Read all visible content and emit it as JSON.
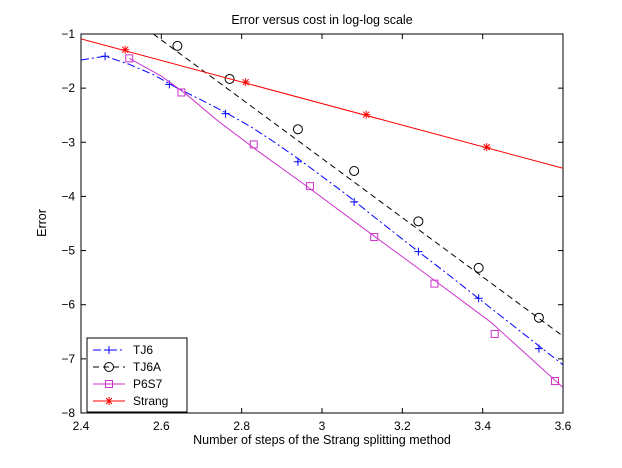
{
  "chart_data": {
    "type": "line",
    "title": "Error versus cost in log-log scale",
    "xlabel": "Number of steps of the Strang splitting method",
    "ylabel": "Error",
    "xlim": [
      2.4,
      3.6
    ],
    "ylim": [
      -8,
      -1
    ],
    "xticks": [
      2.4,
      2.6,
      2.8,
      3.0,
      3.2,
      3.4,
      3.6
    ],
    "xtick_labels": [
      "2.4",
      "2.6",
      "2.8",
      "3",
      "3.2",
      "3.4",
      "3.6"
    ],
    "yticks": [
      -8,
      -7,
      -6,
      -5,
      -4,
      -3,
      -2,
      -1
    ],
    "ytick_labels": [
      "−8",
      "−7",
      "−6",
      "−5",
      "−4",
      "−3",
      "−2",
      "−1"
    ],
    "grid": false,
    "legend_position": "bottom-left",
    "series": [
      {
        "name": "TJ6",
        "color": "#0000ff",
        "line_style": "dash-dot",
        "marker": "plus",
        "line_x": [
          2.4,
          2.46,
          2.52,
          2.58,
          2.64,
          2.7,
          2.76,
          2.82,
          2.88,
          2.94,
          3.0,
          3.06,
          3.12,
          3.18,
          3.24,
          3.3,
          3.36,
          3.42,
          3.48,
          3.54,
          3.6
        ],
        "line_y": [
          -1.48,
          -1.41,
          -1.56,
          -1.75,
          -2.0,
          -2.22,
          -2.45,
          -2.7,
          -2.99,
          -3.3,
          -3.63,
          -3.96,
          -4.32,
          -4.67,
          -5.02,
          -5.36,
          -5.71,
          -6.06,
          -6.41,
          -6.76,
          -7.11
        ],
        "marker_x": [
          2.46,
          2.62,
          2.76,
          2.94,
          3.08,
          3.24,
          3.39,
          3.54
        ],
        "marker_y": [
          -1.41,
          -1.93,
          -2.47,
          -3.36,
          -4.1,
          -5.02,
          -5.88,
          -6.81
        ]
      },
      {
        "name": "TJ6A",
        "color": "#000000",
        "line_style": "dashed",
        "marker": "circle",
        "line_x": [
          2.58,
          3.6
        ],
        "line_y": [
          -1.0,
          -6.58
        ],
        "marker_x": [
          2.64,
          2.77,
          2.94,
          3.08,
          3.24,
          3.39,
          3.54
        ],
        "marker_y": [
          -1.22,
          -1.83,
          -2.76,
          -3.53,
          -4.46,
          -5.32,
          -6.24
        ]
      },
      {
        "name": "P6S7",
        "color": "#cc33cc",
        "line_style": "solid",
        "marker": "square",
        "line_x": [
          2.52,
          2.6,
          2.66,
          2.74,
          2.84,
          2.96,
          3.1,
          3.26,
          3.42,
          3.6
        ],
        "line_y": [
          -1.45,
          -1.78,
          -2.1,
          -2.6,
          -3.16,
          -3.8,
          -4.57,
          -5.44,
          -6.32,
          -7.53
        ],
        "marker_x": [
          2.52,
          2.65,
          2.83,
          2.97,
          3.13,
          3.28,
          3.43,
          3.58
        ],
        "marker_y": [
          -1.45,
          -2.08,
          -3.04,
          -3.81,
          -4.75,
          -5.61,
          -6.54,
          -7.41
        ]
      },
      {
        "name": "Strang",
        "color": "#ff0000",
        "line_style": "solid",
        "marker": "asterisk",
        "line_x": [
          2.4,
          3.6
        ],
        "line_y": [
          -1.09,
          -3.48
        ],
        "marker_x": [
          2.51,
          2.81,
          3.11,
          3.41
        ],
        "marker_y": [
          -1.29,
          -1.89,
          -2.49,
          -3.09
        ]
      }
    ]
  }
}
